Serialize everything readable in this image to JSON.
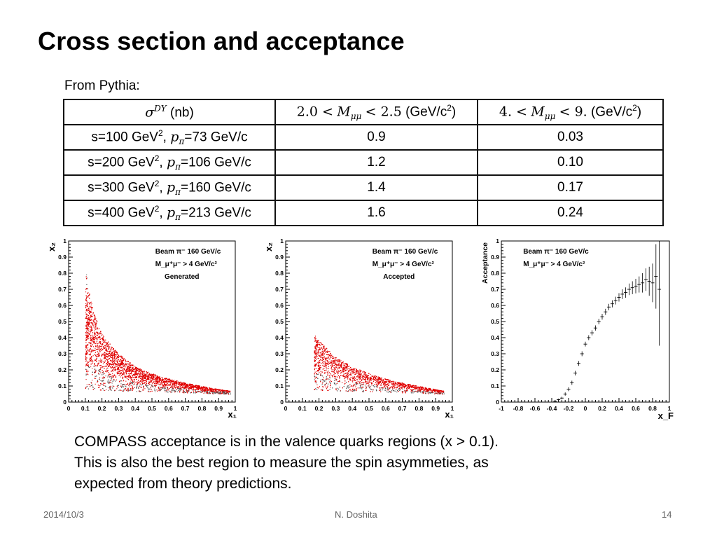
{
  "slide": {
    "title": "Cross section and acceptance",
    "from_label": "From Pythia:",
    "caption_lines": [
      "COMPASS acceptance is in the valence quarks regions (x > 0.1).",
      "This is also the best region to measure the spin asymmeties, as",
      "expected from theory predictions."
    ],
    "footer": {
      "date": "2014/10/3",
      "author": "N. Doshita",
      "page": "14"
    }
  },
  "table": {
    "header": {
      "col0_sym": "σ",
      "col0_sup": "DY",
      "col0_unit": "(nb)",
      "col1_lo": "2.0 <",
      "col1_var": "M",
      "col1_sub": "μμ",
      "col1_hi": "< 2.5",
      "col1_unit_pre": "(GeV/c",
      "col1_unit_sup": "2",
      "col1_unit_post": ")",
      "col2_lo": "4. <",
      "col2_var": "M",
      "col2_sub": "μμ",
      "col2_hi": "< 9.",
      "col2_unit_pre": "(GeV/c",
      "col2_unit_sup": "2",
      "col2_unit_post": ")"
    },
    "rows": [
      {
        "s": "s=100 GeV",
        "s_sup": "2",
        "sep": ",",
        "p": "p",
        "p_sub": "π",
        "pv": "=73 GeV/c",
        "v1": "0.9",
        "v2": "0.03"
      },
      {
        "s": "s=200 GeV",
        "s_sup": "2",
        "sep": ",",
        "p": "p",
        "p_sub": "π",
        "pv": "=106 GeV/c",
        "v1": "1.2",
        "v2": "0.10"
      },
      {
        "s": "s=300 GeV",
        "s_sup": "2",
        "sep": ",",
        "p": "p",
        "p_sub": "π",
        "pv": "=160 GeV/c",
        "v1": "1.4",
        "v2": "0.17"
      },
      {
        "s": "s=400 GeV",
        "s_sup": "2",
        "sep": ",",
        "p": "p",
        "p_sub": "π",
        "pv": "=213 GeV/c",
        "v1": "1.6",
        "v2": "0.24"
      }
    ]
  },
  "chart_data": [
    {
      "type": "scatter",
      "legend": [
        "Beam π⁻ 160 GeV/c",
        "M_μ⁺μ⁻ > 4 GeV/c²",
        "Generated"
      ],
      "xlabel": "x₁",
      "ylabel": "x₂",
      "xlim": [
        0,
        1
      ],
      "ylim": [
        0,
        1
      ],
      "xticks": [
        "0",
        "0.1",
        "0.2",
        "0.3",
        "0.4",
        "0.5",
        "0.6",
        "0.7",
        "0.8",
        "0.9",
        "1"
      ],
      "yticks": [
        "0",
        "0.1",
        "0.2",
        "0.3",
        "0.4",
        "0.5",
        "0.6",
        "0.7",
        "0.8",
        "0.9",
        "1"
      ],
      "region_edge": [
        [
          0.1,
          0.83
        ],
        [
          0.12,
          0.7
        ],
        [
          0.15,
          0.55
        ],
        [
          0.2,
          0.42
        ],
        [
          0.3,
          0.3
        ],
        [
          0.4,
          0.22
        ],
        [
          0.55,
          0.16
        ],
        [
          0.7,
          0.12
        ],
        [
          0.85,
          0.09
        ],
        [
          0.97,
          0.07
        ]
      ],
      "density_ridge": [
        [
          0.15,
          0.45
        ],
        [
          0.25,
          0.3
        ],
        [
          0.4,
          0.2
        ],
        [
          0.6,
          0.14
        ],
        [
          0.85,
          0.09
        ]
      ],
      "point_color": "#e00000"
    },
    {
      "type": "scatter",
      "legend": [
        "Beam π⁻ 160 GeV/c",
        "M_μ⁺μ⁻ > 4 GeV/c²",
        "Accepted"
      ],
      "xlabel": "x₁",
      "ylabel": "x₂",
      "xlim": [
        0,
        1
      ],
      "ylim": [
        0,
        1
      ],
      "xticks": [
        "0",
        "0.1",
        "0.2",
        "0.3",
        "0.4",
        "0.5",
        "0.6",
        "0.7",
        "0.8",
        "0.9",
        "1"
      ],
      "yticks": [
        "0",
        "0.1",
        "0.2",
        "0.3",
        "0.4",
        "0.5",
        "0.6",
        "0.7",
        "0.8",
        "0.9",
        "1"
      ],
      "region_edge": [
        [
          0.17,
          0.42
        ],
        [
          0.2,
          0.38
        ],
        [
          0.3,
          0.28
        ],
        [
          0.4,
          0.22
        ],
        [
          0.55,
          0.16
        ],
        [
          0.7,
          0.12
        ],
        [
          0.85,
          0.09
        ],
        [
          0.95,
          0.07
        ]
      ],
      "density_ridge": [
        [
          0.22,
          0.33
        ],
        [
          0.35,
          0.24
        ],
        [
          0.5,
          0.17
        ],
        [
          0.7,
          0.12
        ],
        [
          0.9,
          0.08
        ]
      ],
      "point_color": "#e00000"
    },
    {
      "type": "line",
      "legend": [
        "Beam π⁻ 160 GeV/c",
        "M_μ⁺μ⁻ > 4 GeV/c²"
      ],
      "xlabel": "x_F",
      "ylabel": "Acceptance",
      "xlim": [
        -1,
        1
      ],
      "ylim": [
        0,
        1
      ],
      "xticks": [
        "-1",
        "-0.8",
        "-0.6",
        "-0.4",
        "-0.2",
        "0",
        "0.2",
        "0.4",
        "0.6",
        "0.8",
        "1"
      ],
      "yticks": [
        "0",
        "0.1",
        "0.2",
        "0.3",
        "0.4",
        "0.5",
        "0.6",
        "0.7",
        "0.8",
        "0.9",
        "1"
      ],
      "x": [
        -0.4,
        -0.36,
        -0.32,
        -0.28,
        -0.24,
        -0.2,
        -0.16,
        -0.12,
        -0.08,
        -0.04,
        0.0,
        0.04,
        0.08,
        0.12,
        0.16,
        0.2,
        0.24,
        0.28,
        0.32,
        0.36,
        0.4,
        0.44,
        0.48,
        0.52,
        0.56,
        0.6,
        0.64,
        0.68,
        0.72,
        0.76,
        0.8,
        0.84,
        0.88
      ],
      "y": [
        0.0,
        0.005,
        0.015,
        0.025,
        0.05,
        0.08,
        0.12,
        0.18,
        0.24,
        0.3,
        0.36,
        0.4,
        0.43,
        0.46,
        0.5,
        0.53,
        0.56,
        0.59,
        0.61,
        0.63,
        0.65,
        0.67,
        0.68,
        0.7,
        0.71,
        0.72,
        0.73,
        0.74,
        0.76,
        0.75,
        0.74,
        0.78,
        0.7
      ],
      "yerr": [
        0.003,
        0.005,
        0.006,
        0.008,
        0.01,
        0.012,
        0.013,
        0.014,
        0.015,
        0.015,
        0.015,
        0.015,
        0.016,
        0.016,
        0.017,
        0.018,
        0.019,
        0.02,
        0.022,
        0.024,
        0.026,
        0.03,
        0.032,
        0.036,
        0.04,
        0.045,
        0.05,
        0.06,
        0.07,
        0.09,
        0.12,
        0.2,
        0.35
      ],
      "marker_color": "#000000"
    }
  ]
}
